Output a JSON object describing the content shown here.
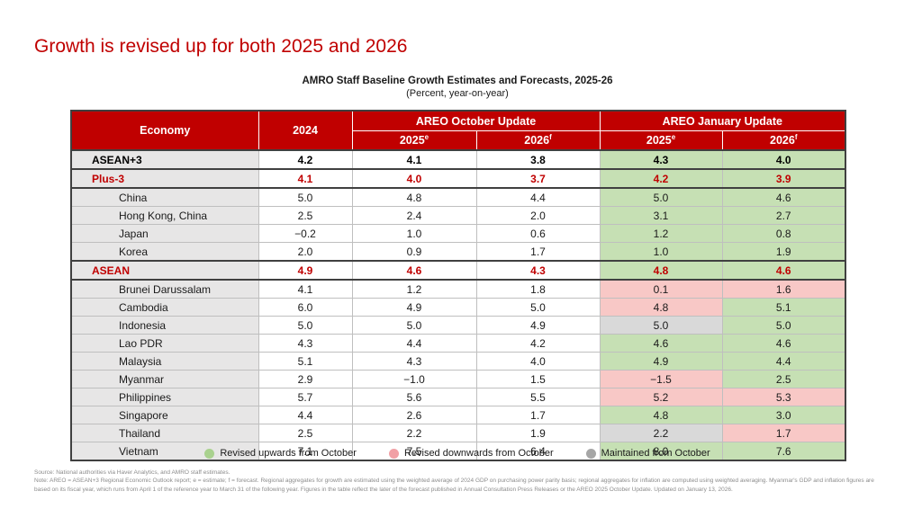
{
  "page": {
    "heading": "Growth is revised up for both 2025 and 2026",
    "accent_color": "#C00000"
  },
  "table": {
    "title": "AMRO Staff Baseline Growth Estimates and Forecasts, 2025-26",
    "subtitle": "(Percent, year-on-year)",
    "header": {
      "economy": "Economy",
      "col_2024": "2024",
      "october_group": "AREO October Update",
      "january_group": "AREO January Update",
      "col_2025": "2025",
      "sup_e": "e",
      "col_2026": "2026",
      "sup_f": "f"
    },
    "rows": [
      {
        "economy": "ASEAN+3",
        "style": "aggregate-black",
        "y2024": "4.2",
        "oct2025": "4.1",
        "oct2026": "3.8",
        "jan2025": "4.3",
        "jan2026": "4.0",
        "jan2025_status": "up",
        "jan2026_status": "up"
      },
      {
        "economy": "Plus-3",
        "style": "aggregate-red",
        "y2024": "4.1",
        "oct2025": "4.0",
        "oct2026": "3.7",
        "jan2025": "4.2",
        "jan2026": "3.9",
        "jan2025_status": "up",
        "jan2026_status": "up"
      },
      {
        "economy": "China",
        "style": "country",
        "y2024": "5.0",
        "oct2025": "4.8",
        "oct2026": "4.4",
        "jan2025": "5.0",
        "jan2026": "4.6",
        "jan2025_status": "up",
        "jan2026_status": "up"
      },
      {
        "economy": "Hong Kong, China",
        "style": "country",
        "y2024": "2.5",
        "oct2025": "2.4",
        "oct2026": "2.0",
        "jan2025": "3.1",
        "jan2026": "2.7",
        "jan2025_status": "up",
        "jan2026_status": "up"
      },
      {
        "economy": "Japan",
        "style": "country",
        "y2024": "−0.2",
        "oct2025": "1.0",
        "oct2026": "0.6",
        "jan2025": "1.2",
        "jan2026": "0.8",
        "jan2025_status": "up",
        "jan2026_status": "up"
      },
      {
        "economy": "Korea",
        "style": "country",
        "y2024": "2.0",
        "oct2025": "0.9",
        "oct2026": "1.7",
        "jan2025": "1.0",
        "jan2026": "1.9",
        "jan2025_status": "up",
        "jan2026_status": "up"
      },
      {
        "economy": "ASEAN",
        "style": "aggregate-red",
        "y2024": "4.9",
        "oct2025": "4.6",
        "oct2026": "4.3",
        "jan2025": "4.8",
        "jan2026": "4.6",
        "jan2025_status": "up",
        "jan2026_status": "up"
      },
      {
        "economy": "Brunei Darussalam",
        "style": "country",
        "y2024": "4.1",
        "oct2025": "1.2",
        "oct2026": "1.8",
        "jan2025": "0.1",
        "jan2026": "1.6",
        "jan2025_status": "down",
        "jan2026_status": "down"
      },
      {
        "economy": "Cambodia",
        "style": "country",
        "y2024": "6.0",
        "oct2025": "4.9",
        "oct2026": "5.0",
        "jan2025": "4.8",
        "jan2026": "5.1",
        "jan2025_status": "down",
        "jan2026_status": "up"
      },
      {
        "economy": "Indonesia",
        "style": "country",
        "y2024": "5.0",
        "oct2025": "5.0",
        "oct2026": "4.9",
        "jan2025": "5.0",
        "jan2026": "5.0",
        "jan2025_status": "maintained",
        "jan2026_status": "up"
      },
      {
        "economy": "Lao PDR",
        "style": "country",
        "y2024": "4.3",
        "oct2025": "4.4",
        "oct2026": "4.2",
        "jan2025": "4.6",
        "jan2026": "4.6",
        "jan2025_status": "up",
        "jan2026_status": "up"
      },
      {
        "economy": "Malaysia",
        "style": "country",
        "y2024": "5.1",
        "oct2025": "4.3",
        "oct2026": "4.0",
        "jan2025": "4.9",
        "jan2026": "4.4",
        "jan2025_status": "up",
        "jan2026_status": "up"
      },
      {
        "economy": "Myanmar",
        "style": "country",
        "y2024": "2.9",
        "oct2025": "−1.0",
        "oct2026": "1.5",
        "jan2025": "−1.5",
        "jan2026": "2.5",
        "jan2025_status": "down",
        "jan2026_status": "up"
      },
      {
        "economy": "Philippines",
        "style": "country",
        "y2024": "5.7",
        "oct2025": "5.6",
        "oct2026": "5.5",
        "jan2025": "5.2",
        "jan2026": "5.3",
        "jan2025_status": "down",
        "jan2026_status": "down"
      },
      {
        "economy": "Singapore",
        "style": "country",
        "y2024": "4.4",
        "oct2025": "2.6",
        "oct2026": "1.7",
        "jan2025": "4.8",
        "jan2026": "3.0",
        "jan2025_status": "up",
        "jan2026_status": "up"
      },
      {
        "economy": "Thailand",
        "style": "country",
        "y2024": "2.5",
        "oct2025": "2.2",
        "oct2026": "1.9",
        "jan2025": "2.2",
        "jan2026": "1.7",
        "jan2025_status": "maintained",
        "jan2026_status": "down"
      },
      {
        "economy": "Vietnam",
        "style": "country",
        "y2024": "7.1",
        "oct2025": "7.5",
        "oct2026": "6.4",
        "jan2025": "8.0",
        "jan2026": "7.6",
        "jan2025_status": "up",
        "jan2026_status": "up"
      }
    ]
  },
  "status_colors": {
    "up": "#C6E0B4",
    "down": "#F8C8C6",
    "maintained": "#D9D9D9"
  },
  "legend": [
    {
      "label": "Revised upwards from October",
      "color": "#A9D18E"
    },
    {
      "label": "Revised downwards from October",
      "color": "#F1A0A5"
    },
    {
      "label": "Maintained from October",
      "color": "#A6A6A6"
    }
  ],
  "footnotes": {
    "source": "Source: National authorities via Haver Analytics, and AMRO staff estimates.",
    "note": "Note: AREO = ASEAN+3 Regional Economic Outlook report; e = estimate; f = forecast. Regional aggregates for growth are estimated using the weighted average of 2024 GDP on purchasing power parity basis; regional aggregates for inflation are computed using weighted averaging. Myanmar's GDP and inflation figures are based on its fiscal year, which runs from April 1 of the reference year to March 31 of the following year. Figures in the table reflect the later of the forecast published in Annual Consultation Press Releases or the AREO 2025 October Update. Updated on January 13, 2026."
  },
  "chart_data": {
    "type": "table",
    "title": "AMRO Staff Baseline Growth Estimates and Forecasts, 2025-26",
    "subtitle": "(Percent, year-on-year)",
    "columns": [
      "Economy",
      "2024",
      "AREO October Update 2025e",
      "AREO October Update 2026f",
      "AREO January Update 2025e",
      "AREO January Update 2026f"
    ],
    "rows": [
      [
        "ASEAN+3",
        4.2,
        4.1,
        3.8,
        4.3,
        4.0
      ],
      [
        "Plus-3",
        4.1,
        4.0,
        3.7,
        4.2,
        3.9
      ],
      [
        "China",
        5.0,
        4.8,
        4.4,
        5.0,
        4.6
      ],
      [
        "Hong Kong, China",
        2.5,
        2.4,
        2.0,
        3.1,
        2.7
      ],
      [
        "Japan",
        -0.2,
        1.0,
        0.6,
        1.2,
        0.8
      ],
      [
        "Korea",
        2.0,
        0.9,
        1.7,
        1.0,
        1.9
      ],
      [
        "ASEAN",
        4.9,
        4.6,
        4.3,
        4.8,
        4.6
      ],
      [
        "Brunei Darussalam",
        4.1,
        1.2,
        1.8,
        0.1,
        1.6
      ],
      [
        "Cambodia",
        6.0,
        4.9,
        5.0,
        4.8,
        5.1
      ],
      [
        "Indonesia",
        5.0,
        5.0,
        4.9,
        5.0,
        5.0
      ],
      [
        "Lao PDR",
        4.3,
        4.4,
        4.2,
        4.6,
        4.6
      ],
      [
        "Malaysia",
        5.1,
        4.3,
        4.0,
        4.9,
        4.4
      ],
      [
        "Myanmar",
        2.9,
        -1.0,
        1.5,
        -1.5,
        2.5
      ],
      [
        "Philippines",
        5.7,
        5.6,
        5.5,
        5.2,
        5.3
      ],
      [
        "Singapore",
        4.4,
        2.6,
        1.7,
        4.8,
        3.0
      ],
      [
        "Thailand",
        2.5,
        2.2,
        1.9,
        2.2,
        1.7
      ],
      [
        "Vietnam",
        7.1,
        7.5,
        6.4,
        8.0,
        7.6
      ]
    ],
    "january_update_cell_status_legend": {
      "green": "revised upwards from October",
      "pink": "revised downwards from October",
      "gray": "maintained from October"
    }
  }
}
